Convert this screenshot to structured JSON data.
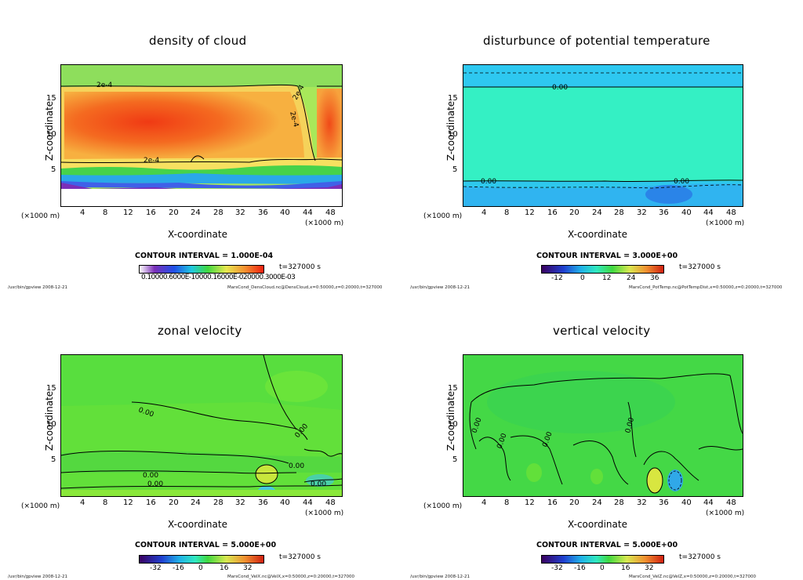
{
  "common": {
    "ylabel": "Z-coordinate",
    "xlabel": "X-coordinate",
    "unit": "(×1000 m)",
    "xticks": [
      "4",
      "8",
      "12",
      "16",
      "20",
      "24",
      "28",
      "32",
      "36",
      "40",
      "44",
      "48"
    ],
    "yticks": [
      "5",
      "10",
      "15"
    ],
    "time": "t=327000 s",
    "foot_left": "/usr/bin/gpview   2008-12-21"
  },
  "panels": [
    {
      "title": "density of cloud",
      "contour_interval": "CONTOUR INTERVAL = 1.000E-04",
      "colorbar_labels": "0.10000.6000E-10000.16000E-020000.3000E-03",
      "colorbar_ticks": [],
      "footer_right": "MarsCond_DensCloud.nc@DensCloud,x=0:50000,z=0:20000,t=327000",
      "contour_labels": [
        "2e-4",
        "2e-4",
        "2e-4",
        "2e-4"
      ]
    },
    {
      "title": "disturbunce of potential temperature",
      "contour_interval": "CONTOUR INTERVAL = 3.000E+00",
      "colorbar_labels": "",
      "colorbar_ticks": [
        "-12",
        "0",
        "12",
        "24",
        "36"
      ],
      "footer_right": "MarsCond_PotTemp.nc@PotTempDist,x=0:50000,z=0:20000,t=327000",
      "contour_labels": [
        "0.00",
        "0.00",
        "0.00"
      ]
    },
    {
      "title": "zonal velocity",
      "contour_interval": "CONTOUR INTERVAL = 5.000E+00",
      "colorbar_labels": "",
      "colorbar_ticks": [
        "-32",
        "-16",
        "0",
        "16",
        "32"
      ],
      "footer_right": "MarsCond_VelX.nc@VelX,x=0:50000,z=0:20000,t=327000",
      "contour_labels": [
        "0.00",
        "0.00",
        "0.00",
        "0.00",
        "0.00",
        "0.00"
      ]
    },
    {
      "title": "vertical velocity",
      "contour_interval": "CONTOUR INTERVAL = 5.000E+00",
      "colorbar_labels": "",
      "colorbar_ticks": [
        "-32",
        "-16",
        "0",
        "16",
        "32"
      ],
      "footer_right": "MarsCond_VelZ.nc@VelZ,x=0:50000,z=0:20000,t=327000",
      "contour_labels": [
        "0.00",
        "0.00",
        "0.00",
        "0.00"
      ]
    }
  ],
  "chart_data": [
    {
      "type": "heatmap",
      "title": "density of cloud",
      "xlabel": "X-coordinate",
      "ylabel": "Z-coordinate",
      "xlim": [
        0,
        50
      ],
      "ylim": [
        0,
        20
      ],
      "contour_interval": 0.0001,
      "contour_level_label": "2e-4",
      "time_s": 327000
    },
    {
      "type": "heatmap",
      "title": "disturbunce of potential temperature",
      "xlabel": "X-coordinate",
      "ylabel": "Z-coordinate",
      "xlim": [
        0,
        50
      ],
      "ylim": [
        0,
        20
      ],
      "contour_interval": 3.0,
      "colorbar_range": [
        -12,
        36
      ],
      "time_s": 327000
    },
    {
      "type": "heatmap",
      "title": "zonal velocity",
      "xlabel": "X-coordinate",
      "ylabel": "Z-coordinate",
      "xlim": [
        0,
        50
      ],
      "ylim": [
        0,
        20
      ],
      "contour_interval": 5.0,
      "colorbar_range": [
        -32,
        32
      ],
      "time_s": 327000
    },
    {
      "type": "heatmap",
      "title": "vertical velocity",
      "xlabel": "X-coordinate",
      "ylabel": "Z-coordinate",
      "xlim": [
        0,
        50
      ],
      "ylim": [
        0,
        20
      ],
      "contour_interval": 5.0,
      "colorbar_range": [
        -32,
        32
      ],
      "time_s": 327000
    }
  ]
}
